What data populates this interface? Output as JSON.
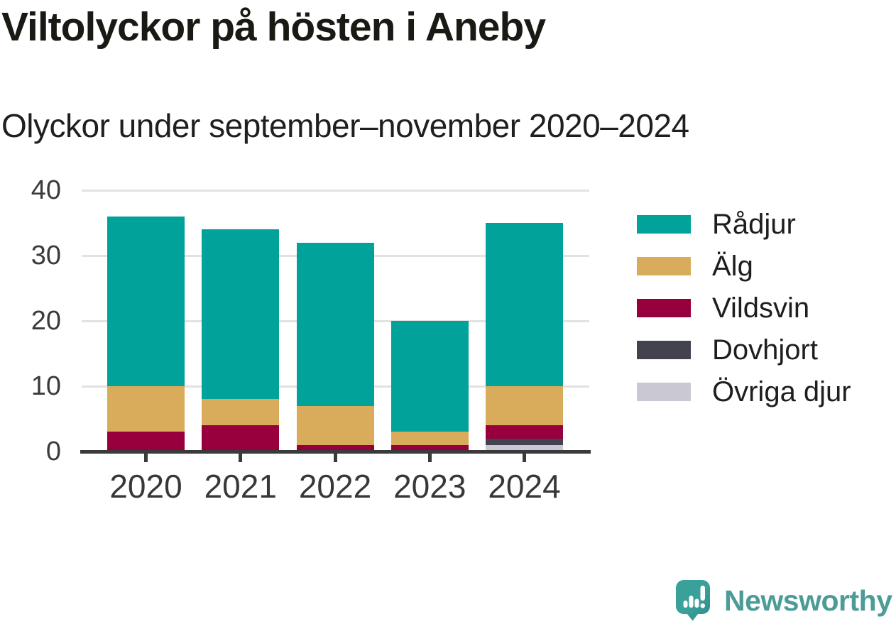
{
  "header": {
    "title": "Viltolyckor på hösten i Aneby",
    "subtitle": "Olyckor under september–november 2020–2024"
  },
  "chart_data": {
    "type": "bar",
    "stacked": true,
    "title": "Viltolyckor på hösten i Aneby",
    "subtitle": "Olyckor under september–november 2020–2024",
    "categories": [
      "2020",
      "2021",
      "2022",
      "2023",
      "2024"
    ],
    "series": [
      {
        "name": "Rådjur",
        "color": "#00a29a",
        "values": [
          26,
          26,
          25,
          17,
          25
        ]
      },
      {
        "name": "Älg",
        "color": "#d9ac5b",
        "values": [
          7,
          4,
          6,
          2,
          6
        ]
      },
      {
        "name": "Vildsvin",
        "color": "#97003d",
        "values": [
          3,
          4,
          1,
          1,
          2
        ]
      },
      {
        "name": "Dovhjort",
        "color": "#43424f",
        "values": [
          0,
          0,
          0,
          0,
          1
        ]
      },
      {
        "name": "Övriga djur",
        "color": "#c9c8d3",
        "values": [
          0,
          0,
          0,
          0,
          1
        ]
      }
    ],
    "stack_order_bottom_to_top": [
      "Övriga djur",
      "Dovhjort",
      "Vildsvin",
      "Älg",
      "Rådjur"
    ],
    "totals": [
      36,
      34,
      32,
      20,
      35
    ],
    "xlabel": "",
    "ylabel": "",
    "ylim": [
      0,
      40
    ],
    "y_ticks": [
      0,
      10,
      20,
      30,
      40
    ],
    "grid": "horizontal",
    "legend_position": "right"
  },
  "footer": {
    "brand": "Newsworthy",
    "logo_icon": "newsworthy-speech-bubble-bar-chart-icon",
    "brand_color": "#4c9b97",
    "logo_fill": "#359a94"
  }
}
